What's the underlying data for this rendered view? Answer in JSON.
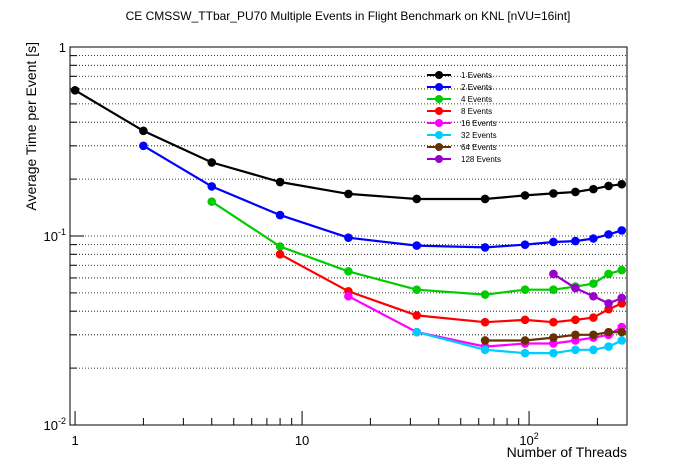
{
  "chart_data": {
    "type": "line",
    "title": "CE CMSSW_TTbar_PU70 Multiple Events in Flight Benchmark on KNL [nVU=16int]",
    "xlabel": "Number of Threads",
    "ylabel": "Average Time per Event [s]",
    "xscale": "log",
    "yscale": "log",
    "xlim": [
      0.95,
      270
    ],
    "ylim": [
      0.01,
      1
    ],
    "x_ticks": [
      {
        "value": 1,
        "label": "1"
      },
      {
        "value": 10,
        "label": "10"
      },
      {
        "value": 100,
        "label": "10",
        "exp": "2"
      }
    ],
    "y_ticks": [
      {
        "value": 0.01,
        "label": "10",
        "exp": "-2"
      },
      {
        "value": 0.1,
        "label": "10",
        "exp": "-1"
      },
      {
        "value": 1,
        "label": "1"
      }
    ],
    "grid": "horizontal dotted",
    "legend_position": "top-right",
    "series": [
      {
        "name": "1 Events",
        "color": "#000000",
        "x": [
          1,
          2,
          4,
          8,
          16,
          32,
          64,
          96,
          128,
          160,
          192,
          224,
          256
        ],
        "y": [
          0.59,
          0.36,
          0.245,
          0.193,
          0.167,
          0.157,
          0.157,
          0.164,
          0.168,
          0.171,
          0.177,
          0.184,
          0.188
        ]
      },
      {
        "name": "2 Events",
        "color": "#0000ff",
        "x": [
          2,
          4,
          8,
          16,
          32,
          64,
          96,
          128,
          160,
          192,
          224,
          256
        ],
        "y": [
          0.3,
          0.183,
          0.129,
          0.098,
          0.089,
          0.087,
          0.09,
          0.093,
          0.094,
          0.097,
          0.102,
          0.107
        ]
      },
      {
        "name": "4 Events",
        "color": "#00cc00",
        "x": [
          4,
          8,
          16,
          32,
          64,
          96,
          128,
          160,
          192,
          224,
          256
        ],
        "y": [
          0.152,
          0.088,
          0.065,
          0.052,
          0.049,
          0.052,
          0.052,
          0.054,
          0.056,
          0.063,
          0.066
        ]
      },
      {
        "name": "8 Events",
        "color": "#ff0000",
        "x": [
          8,
          16,
          32,
          64,
          96,
          128,
          160,
          192,
          224,
          256
        ],
        "y": [
          0.08,
          0.051,
          0.038,
          0.035,
          0.036,
          0.035,
          0.036,
          0.037,
          0.041,
          0.044
        ]
      },
      {
        "name": "16 Events",
        "color": "#ff00ff",
        "x": [
          16,
          32,
          64,
          96,
          128,
          160,
          192,
          224,
          256
        ],
        "y": [
          0.048,
          0.031,
          0.026,
          0.027,
          0.027,
          0.028,
          0.029,
          0.03,
          0.033
        ]
      },
      {
        "name": "32 Events",
        "color": "#00ccff",
        "x": [
          32,
          64,
          96,
          128,
          160,
          192,
          224,
          256
        ],
        "y": [
          0.031,
          0.025,
          0.024,
          0.024,
          0.025,
          0.025,
          0.026,
          0.028
        ]
      },
      {
        "name": "64 Events",
        "color": "#663300",
        "x": [
          64,
          96,
          128,
          160,
          192,
          224,
          256
        ],
        "y": [
          0.028,
          0.028,
          0.029,
          0.03,
          0.03,
          0.031,
          0.031
        ]
      },
      {
        "name": "128 Events",
        "color": "#9900cc",
        "x": [
          128,
          160,
          192,
          224,
          256
        ],
        "y": [
          0.063,
          0.053,
          0.048,
          0.044,
          0.047
        ]
      }
    ]
  }
}
